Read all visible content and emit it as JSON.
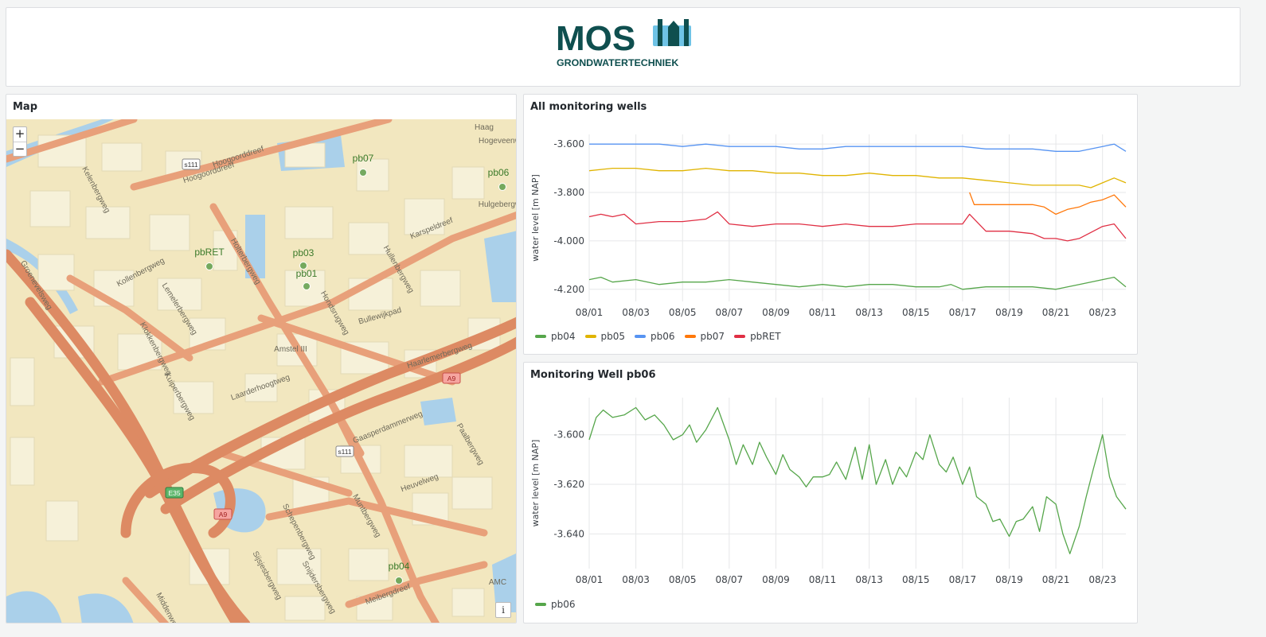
{
  "logo": {
    "word": "MOS",
    "subtitle": "GRONDWATERTECHNIEK",
    "color_dark": "#0f4f4f",
    "color_light": "#6fc3e6"
  },
  "map": {
    "title": "Map",
    "zoom_in": "+",
    "zoom_out": "−",
    "info": "i",
    "wells": [
      {
        "label": "pb07"
      },
      {
        "label": "pb06"
      },
      {
        "label": "pbRET"
      },
      {
        "label": "pb03"
      },
      {
        "label": "pb01"
      },
      {
        "label": "pb04"
      }
    ],
    "street_labels": [
      "Hoogoorddreef",
      "Kelenbergweg",
      "Kollenbergweg",
      "Lemelerbergweg",
      "Klokkenbergweg",
      "Kuiperbergweg",
      "Holterbergweg",
      "Hondsrugweg",
      "Bullewijkpad",
      "Hullenbergweg",
      "Karspeldreef",
      "Laarderhoogtweg",
      "Gaasperdammerweg",
      "Muntbergweg",
      "Schepenbergweg",
      "Sijsjesbergweg",
      "Snijdersbergweg",
      "Heuvelweg",
      "Paalbergweg",
      "Meibergdreef",
      "Middenweg",
      "Groenevelsweg",
      "Amstel III",
      "Haarlemerbergweg",
      "Hogeveenweg",
      "Hulgebergweg",
      "Hoogoorddreef",
      "AMC",
      "Haag"
    ],
    "road_shields": [
      "s111",
      "s111",
      "A9",
      "A9",
      "E35"
    ],
    "colors": {
      "land": "#f2e7bf",
      "road": "#e8a07a",
      "motorway": "#dd8a63",
      "water": "#aad0ea",
      "building": "#f6f1d9",
      "marker": "#5e9e4b",
      "marker_label": "#3b7a2a"
    }
  },
  "chart1": {
    "title": "All monitoring wells",
    "chart_data": {
      "type": "line",
      "ylabel": "water level [m NAP]",
      "xlabel": "",
      "x_ticks": [
        "08/01",
        "08/03",
        "08/05",
        "08/07",
        "08/09",
        "08/11",
        "08/13",
        "08/15",
        "08/17",
        "08/19",
        "08/21",
        "08/23"
      ],
      "y_ticks": [
        "-3.600",
        "-3.800",
        "-4.000",
        "-4.200"
      ],
      "ylim": [
        -4.25,
        -3.56
      ],
      "xlim_days": [
        1,
        24
      ],
      "grid": true,
      "legend": "bottom-left",
      "series": [
        {
          "name": "pb04",
          "color": "#56a64b",
          "x": [
            1,
            1.5,
            2,
            3,
            4,
            5,
            6,
            7,
            8,
            9,
            10,
            11,
            12,
            13,
            14,
            15,
            16,
            16.5,
            17,
            18,
            19,
            20,
            21,
            22,
            23,
            23.5,
            24
          ],
          "y": [
            -4.16,
            -4.15,
            -4.17,
            -4.16,
            -4.18,
            -4.17,
            -4.17,
            -4.16,
            -4.17,
            -4.18,
            -4.19,
            -4.18,
            -4.19,
            -4.18,
            -4.18,
            -4.19,
            -4.19,
            -4.18,
            -4.2,
            -4.19,
            -4.19,
            -4.19,
            -4.2,
            -4.18,
            -4.16,
            -4.15,
            -4.19
          ]
        },
        {
          "name": "pb05",
          "color": "#e0b400",
          "x": [
            1,
            2,
            3,
            4,
            5,
            6,
            7,
            8,
            9,
            10,
            11,
            12,
            13,
            14,
            15,
            16,
            17,
            18,
            19,
            20,
            21,
            22,
            22.5,
            23,
            23.5,
            24
          ],
          "y": [
            -3.71,
            -3.7,
            -3.7,
            -3.71,
            -3.71,
            -3.7,
            -3.71,
            -3.71,
            -3.72,
            -3.72,
            -3.73,
            -3.73,
            -3.72,
            -3.73,
            -3.73,
            -3.74,
            -3.74,
            -3.75,
            -3.76,
            -3.77,
            -3.77,
            -3.77,
            -3.78,
            -3.76,
            -3.74,
            -3.76
          ]
        },
        {
          "name": "pb06",
          "color": "#5794f2",
          "x": [
            1,
            2,
            3,
            4,
            5,
            6,
            7,
            8,
            9,
            10,
            11,
            12,
            13,
            14,
            15,
            16,
            17,
            18,
            19,
            20,
            21,
            22,
            23,
            23.5,
            24
          ],
          "y": [
            -3.6,
            -3.6,
            -3.6,
            -3.6,
            -3.61,
            -3.6,
            -3.61,
            -3.61,
            -3.61,
            -3.62,
            -3.62,
            -3.61,
            -3.61,
            -3.61,
            -3.61,
            -3.61,
            -3.61,
            -3.62,
            -3.62,
            -3.62,
            -3.63,
            -3.63,
            -3.61,
            -3.6,
            -3.63
          ]
        },
        {
          "name": "pb07",
          "color": "#ff780a",
          "x": [
            17.3,
            17.5,
            18,
            19,
            20,
            20.5,
            21,
            21.5,
            22,
            22.5,
            23,
            23.5,
            24
          ],
          "y": [
            -3.8,
            -3.85,
            -3.85,
            -3.85,
            -3.85,
            -3.86,
            -3.89,
            -3.87,
            -3.86,
            -3.84,
            -3.83,
            -3.81,
            -3.86
          ]
        },
        {
          "name": "pbRET",
          "color": "#e02f44",
          "x": [
            1,
            1.5,
            2,
            2.5,
            3,
            4,
            5,
            6,
            6.5,
            7,
            8,
            9,
            10,
            11,
            12,
            13,
            14,
            15,
            16,
            17,
            17.3,
            18,
            19,
            20,
            20.5,
            21,
            21.5,
            22,
            23,
            23.5,
            24
          ],
          "y": [
            -3.9,
            -3.89,
            -3.9,
            -3.89,
            -3.93,
            -3.92,
            -3.92,
            -3.91,
            -3.88,
            -3.93,
            -3.94,
            -3.93,
            -3.93,
            -3.94,
            -3.93,
            -3.94,
            -3.94,
            -3.93,
            -3.93,
            -3.93,
            -3.89,
            -3.96,
            -3.96,
            -3.97,
            -3.99,
            -3.99,
            -4.0,
            -3.99,
            -3.94,
            -3.93,
            -3.99
          ]
        }
      ]
    }
  },
  "chart2": {
    "title": "Monitoring Well pb06",
    "chart_data": {
      "type": "line",
      "ylabel": "water level [m NAP]",
      "xlabel": "",
      "x_ticks": [
        "08/01",
        "08/03",
        "08/05",
        "08/07",
        "08/09",
        "08/11",
        "08/13",
        "08/15",
        "08/17",
        "08/19",
        "08/21",
        "08/23"
      ],
      "y_ticks": [
        "-3.600",
        "-3.620",
        "-3.640"
      ],
      "ylim": [
        -3.654,
        -3.585
      ],
      "xlim_days": [
        1,
        24
      ],
      "grid": true,
      "legend": "bottom-left",
      "series": [
        {
          "name": "pb06",
          "color": "#56a64b",
          "x": [
            1,
            1.3,
            1.6,
            2,
            2.5,
            3,
            3.4,
            3.8,
            4.2,
            4.6,
            5,
            5.3,
            5.6,
            6,
            6.5,
            7,
            7.3,
            7.6,
            8,
            8.3,
            8.6,
            9,
            9.3,
            9.6,
            10,
            10.3,
            10.6,
            11,
            11.3,
            11.6,
            12,
            12.4,
            12.7,
            13,
            13.3,
            13.7,
            14,
            14.3,
            14.6,
            15,
            15.3,
            15.6,
            16,
            16.3,
            16.6,
            17,
            17.3,
            17.6,
            18,
            18.3,
            18.6,
            19,
            19.3,
            19.6,
            20,
            20.3,
            20.6,
            21,
            21.3,
            21.6,
            22,
            22.3,
            22.6,
            23,
            23.3,
            23.6,
            24
          ],
          "y": [
            -3.602,
            -3.593,
            -3.59,
            -3.593,
            -3.592,
            -3.589,
            -3.594,
            -3.592,
            -3.596,
            -3.602,
            -3.6,
            -3.596,
            -3.603,
            -3.598,
            -3.589,
            -3.602,
            -3.612,
            -3.604,
            -3.612,
            -3.603,
            -3.609,
            -3.616,
            -3.608,
            -3.614,
            -3.617,
            -3.621,
            -3.617,
            -3.617,
            -3.616,
            -3.611,
            -3.618,
            -3.605,
            -3.618,
            -3.604,
            -3.62,
            -3.61,
            -3.62,
            -3.613,
            -3.617,
            -3.607,
            -3.61,
            -3.6,
            -3.612,
            -3.615,
            -3.609,
            -3.62,
            -3.613,
            -3.625,
            -3.628,
            -3.635,
            -3.634,
            -3.641,
            -3.635,
            -3.634,
            -3.629,
            -3.639,
            -3.625,
            -3.628,
            -3.64,
            -3.648,
            -3.637,
            -3.625,
            -3.614,
            -3.6,
            -3.617,
            -3.625,
            -3.63
          ]
        }
      ]
    }
  }
}
